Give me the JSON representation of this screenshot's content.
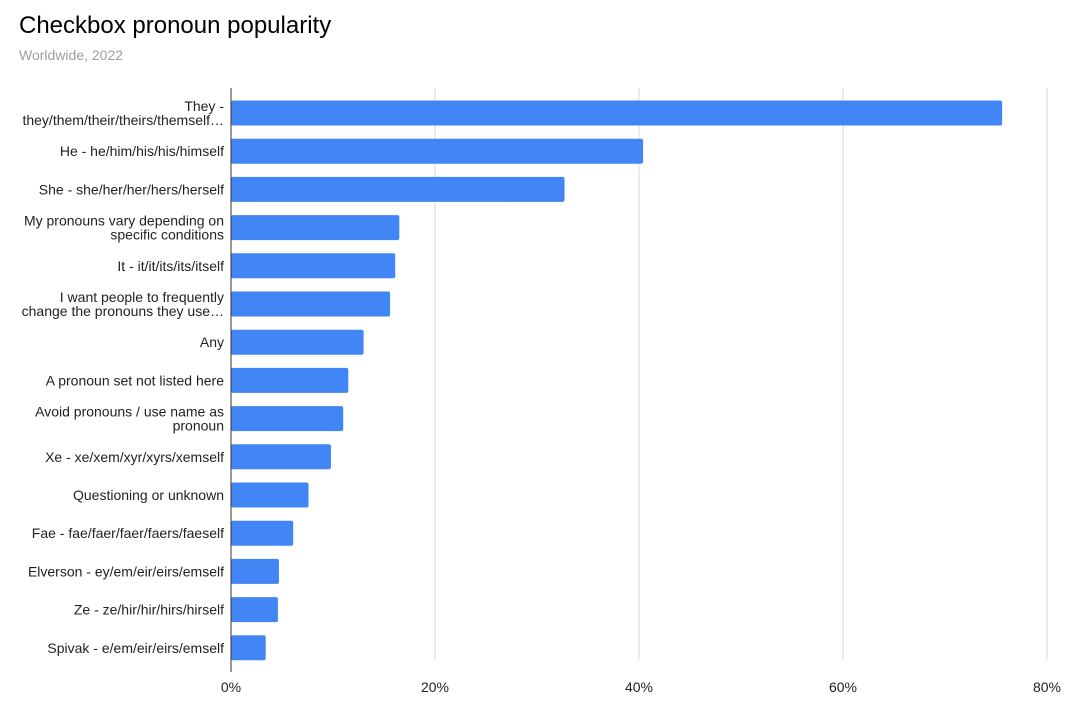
{
  "title": "Checkbox pronoun popularity",
  "subtitle": "Worldwide, 2022",
  "colors": {
    "bar": "#4285f4",
    "grid": "#d9d9d9",
    "axis": "#333333"
  },
  "chart_data": {
    "type": "bar",
    "orientation": "horizontal",
    "title": "Checkbox pronoun popularity",
    "subtitle": "Worldwide, 2022",
    "xlabel": "",
    "ylabel": "",
    "xlim": [
      0,
      0.8
    ],
    "grid": true,
    "legend": "none",
    "x_ticks": [
      "0%",
      "20%",
      "40%",
      "60%",
      "80%"
    ],
    "x_tick_values": [
      0,
      0.2,
      0.4,
      0.6,
      0.8
    ],
    "categories": [
      [
        "They -",
        "they/them/their/theirs/themself…"
      ],
      [
        "He - he/him/his/his/himself"
      ],
      [
        "She - she/her/her/hers/herself"
      ],
      [
        "My pronouns vary depending on",
        "specific conditions"
      ],
      [
        "It - it/it/its/its/itself"
      ],
      [
        "I want people to frequently",
        "change the pronouns they use…"
      ],
      [
        "Any"
      ],
      [
        "A pronoun set not listed here"
      ],
      [
        "Avoid pronouns / use name as",
        "pronoun"
      ],
      [
        "Xe - xe/xem/xyr/xyrs/xemself"
      ],
      [
        "Questioning or unknown"
      ],
      [
        "Fae - fae/faer/faer/faers/faeself"
      ],
      [
        "Elverson - ey/em/eir/eirs/emself"
      ],
      [
        "Ze - ze/hir/hir/hirs/hirself"
      ],
      [
        "Spivak - e/em/eir/eirs/emself"
      ]
    ],
    "values": [
      0.756,
      0.404,
      0.327,
      0.165,
      0.161,
      0.156,
      0.13,
      0.115,
      0.11,
      0.098,
      0.076,
      0.061,
      0.047,
      0.046,
      0.034
    ]
  }
}
